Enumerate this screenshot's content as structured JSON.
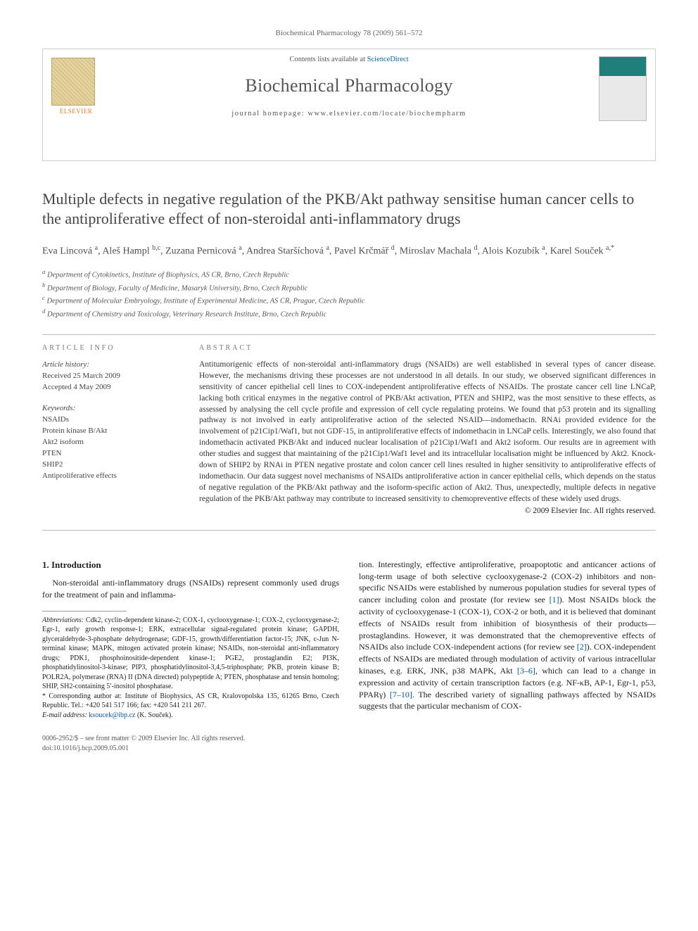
{
  "page_meta": "Biochemical Pharmacology 78 (2009) 561–572",
  "header": {
    "contents_prefix": "Contents lists available at ",
    "contents_link": "ScienceDirect",
    "journal": "Biochemical Pharmacology",
    "homepage_prefix": "journal homepage: ",
    "homepage": "www.elsevier.com/locate/biochempharm",
    "publisher": "ELSEVIER"
  },
  "title": "Multiple defects in negative regulation of the PKB/Akt pathway sensitise human cancer cells to the antiproliferative effect of non-steroidal anti-inflammatory drugs",
  "authors_html": "Eva Lincová <sup>a</sup>, Aleš Hampl <sup>b,c</sup>, Zuzana Pernicová <sup>a</sup>, Andrea Staršíchová <sup>a</sup>, Pavel Krčmář <sup>d</sup>, Miroslav Machala <sup>d</sup>, Alois Kozubík <sup>a</sup>, Karel Souček <sup>a,*</sup>",
  "affiliations": {
    "a": "Department of Cytokinetics, Institute of Biophysics, AS CR, Brno, Czech Republic",
    "b": "Department of Biology, Faculty of Medicine, Masaryk University, Brno, Czech Republic",
    "c": "Department of Molecular Embryology, Institute of Experimental Medicine, AS CR, Prague, Czech Republic",
    "d": "Department of Chemistry and Toxicology, Veterinary Research Institute, Brno, Czech Republic"
  },
  "info": {
    "label": "ARTICLE INFO",
    "history_head": "Article history:",
    "received": "Received 25 March 2009",
    "accepted": "Accepted 4 May 2009",
    "keywords_head": "Keywords:",
    "keywords": [
      "NSAIDs",
      "Protein kinase B/Akt",
      "Akt2 isoform",
      "PTEN",
      "SHIP2",
      "Antiproliferative effects"
    ]
  },
  "abstract": {
    "label": "ABSTRACT",
    "text": "Antitumorigenic effects of non-steroidal anti-inflammatory drugs (NSAIDs) are well established in several types of cancer disease. However, the mechanisms driving these processes are not understood in all details. In our study, we observed significant differences in sensitivity of cancer epithelial cell lines to COX-independent antiproliferative effects of NSAIDs. The prostate cancer cell line LNCaP, lacking both critical enzymes in the negative control of PKB/Akt activation, PTEN and SHIP2, was the most sensitive to these effects, as assessed by analysing the cell cycle profile and expression of cell cycle regulating proteins. We found that p53 protein and its signalling pathway is not involved in early antiproliferative action of the selected NSAID—indomethacin. RNAi provided evidence for the involvement of p21Cip1/Waf1, but not GDF-15, in antiproliferative effects of indomethacin in LNCaP cells. Interestingly, we also found that indomethacin activated PKB/Akt and induced nuclear localisation of p21Cip1/Waf1 and Akt2 isoform. Our results are in agreement with other studies and suggest that maintaining of the p21Cip1/Waf1 level and its intracellular localisation might be influenced by Akt2. Knock-down of SHIP2 by RNAi in PTEN negative prostate and colon cancer cell lines resulted in higher sensitivity to antiproliferative effects of indomethacin. Our data suggest novel mechanisms of NSAIDs antiproliferative action in cancer epithelial cells, which depends on the status of negative regulation of the PKB/Akt pathway and the isoform-specific action of Akt2. Thus, unexpectedly, multiple defects in negative regulation of the PKB/Akt pathway may contribute to increased sensitivity to chemopreventive effects of these widely used drugs.",
    "copyright": "© 2009 Elsevier Inc. All rights reserved."
  },
  "section1": {
    "heading": "1. Introduction",
    "para1": "Non-steroidal anti-inflammatory drugs (NSAIDs) represent commonly used drugs for the treatment of pain and inflamma-",
    "para_right": "tion. Interestingly, effective antiproliferative, proapoptotic and anticancer actions of long-term usage of both selective cyclooxygenase-2 (COX-2) inhibitors and non-specific NSAIDs were established by numerous population studies for several types of cancer including colon and prostate (for review see [1]). Most NSAIDs block the activity of cyclooxygenase-1 (COX-1), COX-2 or both, and it is believed that dominant effects of NSAIDs result from inhibition of biosynthesis of their products—prostaglandins. However, it was demonstrated that the chemopreventive effects of NSAIDs also include COX-independent actions (for review see [2]). COX-independent effects of NSAIDs are mediated through modulation of activity of various intracellular kinases, e.g. ERK, JNK, p38 MAPK, Akt [3–6], which can lead to a change in expression and activity of certain transcription factors (e.g. NF-κB, AP-1, Egr-1, p53, PPARγ) [7–10]. The described variety of signalling pathways affected by NSAIDs suggests that the particular mechanism of COX-"
  },
  "footnotes": {
    "abbrev_head": "Abbreviations:",
    "abbrev": "Cdk2, cyclin-dependent kinase-2; COX-1, cyclooxygenase-1; COX-2, cyclooxygenase-2; Egr-1, early growth response-1; ERK, extracellular signal-regulated protein kinase; GAPDH, glyceraldehyde-3-phosphate dehydrogenase; GDF-15, growth/differentiation factor-15; JNK, c-Jun N-terminal kinase; MAPK, mitogen activated protein kinase; NSAIDs, non-steroidal anti-inflammatory drugs; PDK1, phosphoinositide-dependent kinase-1; PGE2, prostaglandin E2; PI3K, phosphatidylinositol-3-kinase; PIP3, phosphatidylinositol-3,4,5-triphosphate; PKB, protein kinase B; POLR2A, polymerase (RNA) II (DNA directed) polypeptide A; PTEN, phosphatase and tensin homolog; SHIP, SH2-containing 5′-inositol phosphatase.",
    "corr": "* Corresponding author at: Institute of Biophysics, AS CR, Kralovopolska 135, 61265 Brno, Czech Republic. Tel.: +420 541 517 166; fax: +420 541 211 267.",
    "email_label": "E-mail address:",
    "email": "ksoucek@ibp.cz",
    "email_who": "(K. Souček)."
  },
  "footer": {
    "line1": "0006-2952/$ – see front matter © 2009 Elsevier Inc. All rights reserved.",
    "line2": "doi:10.1016/j.bcp.2009.05.001"
  },
  "colors": {
    "link": "#0066aa",
    "rule": "#bbbbbb",
    "text": "#333333",
    "muted": "#666666",
    "elsevier_orange": "#e7792b",
    "cover_teal": "#1f7f7a"
  },
  "typography": {
    "title_pt": 22,
    "journal_pt": 26,
    "body_pt": 12,
    "abstract_pt": 11.5,
    "affil_pt": 10.5,
    "footnote_pt": 10
  }
}
